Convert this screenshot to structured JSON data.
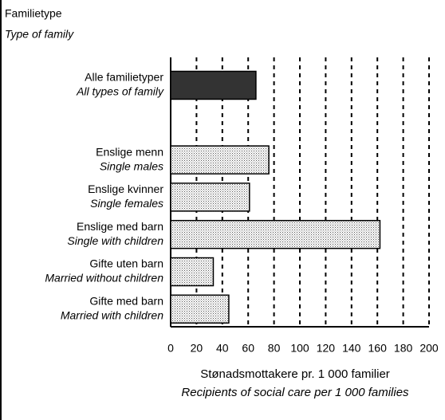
{
  "chart_data": {
    "type": "bar",
    "orientation": "horizontal",
    "y_label": [
      "Familietype",
      "Type of family"
    ],
    "x_label": [
      "Stønadsmottakere pr. 1 000 familier",
      "Recipients of social care per 1 000 families"
    ],
    "categories": [
      "Alle familietyper",
      null,
      "Enslige menn",
      "Enslige kvinner",
      "Enslige med barn",
      "Gifte uten barn",
      "Gifte med barn"
    ],
    "categories_en": [
      "All types of family",
      null,
      "Single males",
      "Single females",
      "Single with children",
      "Married without children",
      "Married with children"
    ],
    "values": [
      66,
      null,
      76,
      61,
      162,
      33,
      45
    ],
    "colors": [
      "#333333",
      null,
      "#cfcfcf",
      "#cfcfcf",
      "#cfcfcf",
      "#cfcfcf",
      "#cfcfcf"
    ],
    "xlim": [
      0,
      200
    ],
    "xticks": [
      0,
      20,
      40,
      60,
      80,
      100,
      120,
      140,
      160,
      180,
      200
    ],
    "grid": true
  }
}
